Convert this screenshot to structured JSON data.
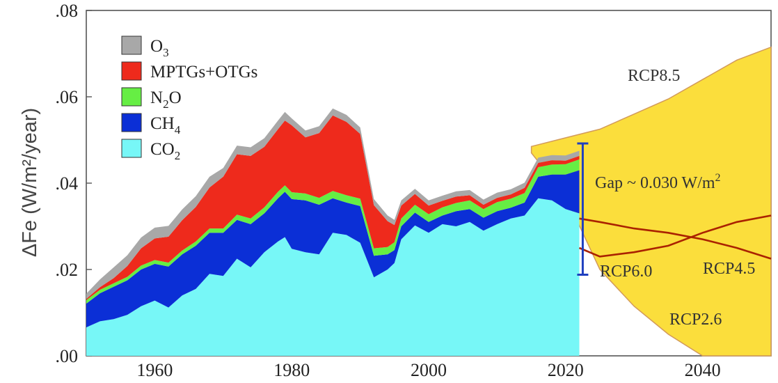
{
  "chart_data": {
    "type": "area",
    "ylabel": "ΔFe (W/m²/year)",
    "xlim": [
      1950,
      2050
    ],
    "ylim": [
      0,
      0.08
    ],
    "x_ticks": [
      1960,
      1980,
      2000,
      2020,
      2040
    ],
    "x_tick_labels": [
      "1960",
      "1980",
      "2000",
      "2020",
      "2040"
    ],
    "y_ticks": [
      0,
      0.02,
      0.04,
      0.06,
      0.08
    ],
    "y_tick_labels": [
      ".00",
      ".02",
      ".04",
      ".06",
      ".08"
    ],
    "legend_position": "top-left",
    "colors": {
      "O3": "#a8a8a8",
      "MPTGs+OTGs": "#ee2a1c",
      "N2O": "#66ee44",
      "CH4": "#0b2fd6",
      "CO2": "#77f7f7",
      "RCP_band": "#fbde3c",
      "RCP_line": "#aa2200",
      "Gap_bar": "#1f3fbf"
    },
    "x": [
      1950,
      1952,
      1954,
      1956,
      1958,
      1960,
      1962,
      1964,
      1966,
      1968,
      1970,
      1972,
      1974,
      1976,
      1978,
      1979,
      1980,
      1982,
      1984,
      1986,
      1988,
      1990,
      1992,
      1994,
      1995,
      1996,
      1998,
      2000,
      2002,
      2004,
      2006,
      2008,
      2010,
      2012,
      2014,
      2016,
      2018,
      2020,
      2022
    ],
    "series": [
      {
        "name": "CO2",
        "values": [
          0.0066,
          0.008,
          0.0085,
          0.0095,
          0.0115,
          0.0128,
          0.0112,
          0.014,
          0.0155,
          0.019,
          0.0185,
          0.0225,
          0.0205,
          0.024,
          0.0265,
          0.0275,
          0.0248,
          0.024,
          0.0235,
          0.0285,
          0.028,
          0.0262,
          0.0182,
          0.02,
          0.0215,
          0.027,
          0.0302,
          0.0285,
          0.0305,
          0.03,
          0.031,
          0.029,
          0.0305,
          0.0318,
          0.0325,
          0.0365,
          0.036,
          0.034,
          0.033
        ]
      },
      {
        "name": "CH4",
        "values": [
          0.0055,
          0.0065,
          0.0075,
          0.008,
          0.0085,
          0.0085,
          0.0095,
          0.0095,
          0.01,
          0.0095,
          0.01,
          0.009,
          0.01,
          0.009,
          0.01,
          0.0105,
          0.0115,
          0.012,
          0.0115,
          0.008,
          0.0075,
          0.0085,
          0.005,
          0.0035,
          0.003,
          0.003,
          0.003,
          0.0025,
          0.002,
          0.0035,
          0.003,
          0.003,
          0.003,
          0.0025,
          0.003,
          0.005,
          0.006,
          0.008,
          0.01
        ]
      },
      {
        "name": "N2O",
        "values": [
          0.0008,
          0.0008,
          0.0008,
          0.0008,
          0.0009,
          0.0009,
          0.0009,
          0.0009,
          0.001,
          0.001,
          0.001,
          0.0012,
          0.0013,
          0.0014,
          0.0015,
          0.0015,
          0.0016,
          0.0016,
          0.0016,
          0.0017,
          0.0017,
          0.0017,
          0.0017,
          0.0017,
          0.0018,
          0.0018,
          0.0018,
          0.0018,
          0.0019,
          0.0019,
          0.002,
          0.002,
          0.0021,
          0.0021,
          0.0022,
          0.0022,
          0.0023,
          0.0024,
          0.0025
        ]
      },
      {
        "name": "MPTGs+OTGs",
        "values": [
          0.0003,
          0.0006,
          0.0012,
          0.0025,
          0.004,
          0.005,
          0.006,
          0.007,
          0.008,
          0.0095,
          0.012,
          0.014,
          0.0145,
          0.014,
          0.0145,
          0.015,
          0.0155,
          0.013,
          0.015,
          0.0175,
          0.017,
          0.015,
          0.01,
          0.006,
          0.004,
          0.003,
          0.0025,
          0.002,
          0.0015,
          0.0015,
          0.0012,
          0.001,
          0.001,
          0.001,
          0.0012,
          0.001,
          0.001,
          0.0008,
          0.0008
        ]
      },
      {
        "name": "O3",
        "values": [
          0.0012,
          0.0018,
          0.0025,
          0.0025,
          0.0025,
          0.0025,
          0.0025,
          0.0025,
          0.0025,
          0.0025,
          0.002,
          0.002,
          0.002,
          0.002,
          0.002,
          0.002,
          0.0016,
          0.0016,
          0.0016,
          0.0016,
          0.0016,
          0.0015,
          0.0014,
          0.0013,
          0.0012,
          0.0012,
          0.0012,
          0.0012,
          0.0012,
          0.0012,
          0.0012,
          0.0012,
          0.0012,
          0.0012,
          0.0012,
          0.0012,
          0.0012,
          0.0012,
          0.0012
        ]
      }
    ],
    "legend": [
      {
        "key": "O3",
        "base": "O",
        "sub": "3",
        "tail": ""
      },
      {
        "key": "MPTGs+OTGs",
        "base": "MPTGs+OTGs",
        "sub": "",
        "tail": ""
      },
      {
        "key": "N2O",
        "base": "N",
        "sub": "2",
        "tail": "O"
      },
      {
        "key": "CH4",
        "base": "CH",
        "sub": "4",
        "tail": ""
      },
      {
        "key": "CO2",
        "base": "CO",
        "sub": "2",
        "tail": ""
      }
    ],
    "rcp_band": {
      "upper": {
        "x": [
          2015,
          2020,
          2025,
          2030,
          2035,
          2040,
          2045,
          2050
        ],
        "y": [
          0.0485,
          0.0505,
          0.0525,
          0.056,
          0.0595,
          0.064,
          0.0685,
          0.0715
        ]
      },
      "lower": {
        "x": [
          2015,
          2020,
          2025,
          2030,
          2035,
          2040,
          2045,
          2050
        ],
        "y": [
          0.047,
          0.037,
          0.02,
          0.0115,
          0.005,
          0.0,
          0.0,
          0.0
        ]
      }
    },
    "rcp_lines": [
      {
        "name": "RCP6.0",
        "x": [
          2022,
          2025,
          2030,
          2035,
          2040,
          2045,
          2050
        ],
        "y": [
          0.025,
          0.023,
          0.024,
          0.0255,
          0.0285,
          0.031,
          0.0325
        ]
      },
      {
        "name": "RCP4.5",
        "x": [
          2022,
          2025,
          2030,
          2035,
          2040,
          2045,
          2050
        ],
        "y": [
          0.0318,
          0.031,
          0.0295,
          0.0285,
          0.027,
          0.025,
          0.0225
        ]
      }
    ],
    "annotations": {
      "rcp85": "RCP8.5",
      "rcp60": "RCP6.0",
      "rcp45": "RCP4.5",
      "rcp26": "RCP2.6",
      "gap_text": "Gap ~ 0.030 W/m",
      "gap_sup": "2",
      "gap_bar": {
        "x": 2022.5,
        "y_from": 0.0188,
        "y_to": 0.0492
      }
    }
  }
}
